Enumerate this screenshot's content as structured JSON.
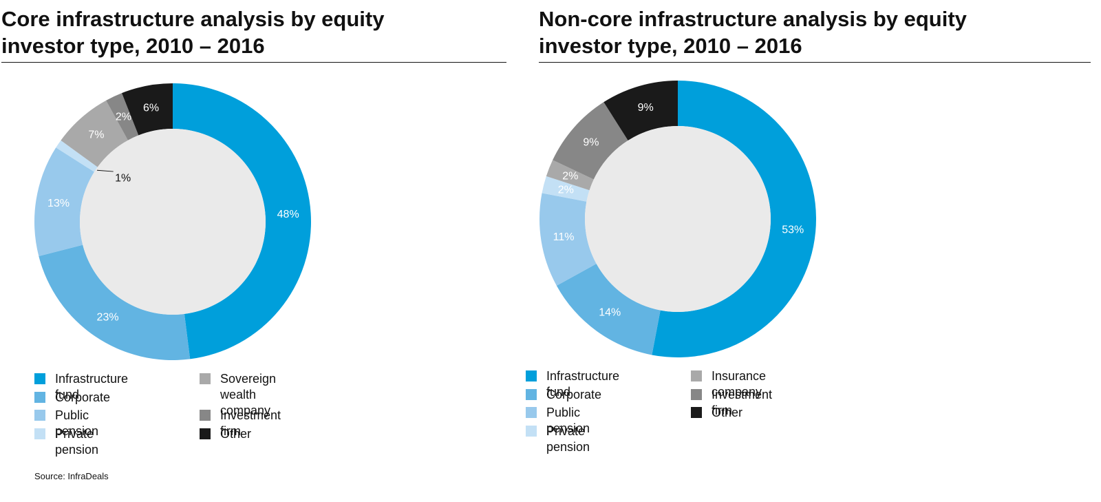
{
  "chart_data": [
    {
      "type": "pie",
      "subtype": "donut",
      "title": "Core infrastructure analysis by equity investor type, 2010 – 2016",
      "categories": [
        "Infrastructure fund",
        "Corporate",
        "Public pension",
        "Private pension",
        "Sovereign wealth company",
        "Investment firm",
        "Other"
      ],
      "values": [
        48,
        23,
        13,
        1,
        7,
        2,
        6
      ],
      "value_labels": [
        "48%",
        "23%",
        "13%",
        "1%",
        "7%",
        "2%",
        "6%"
      ],
      "colors": [
        "#009FDB",
        "#62B4E2",
        "#98C9EC",
        "#C3E0F5",
        "#A9A9A9",
        "#878787",
        "#1A1A1A"
      ],
      "label_colors": [
        "#FFFFFF",
        "#FFFFFF",
        "#FFFFFF",
        "#111111",
        "#FFFFFF",
        "#FFFFFF",
        "#FFFFFF"
      ],
      "legend_position": "bottom",
      "legend_columns": [
        [
          "Infrastructure fund",
          "Corporate",
          "Public pension",
          "Private pension"
        ],
        [
          "Sovereign wealth company",
          "Investment firm",
          "Other"
        ]
      ]
    },
    {
      "type": "pie",
      "subtype": "donut",
      "title": "Non-core infrastructure analysis by equity investor type, 2010 – 2016",
      "categories": [
        "Infrastructure fund",
        "Corporate",
        "Public pension",
        "Private pension",
        "Insurance company",
        "Investment firm",
        "Other"
      ],
      "values": [
        53,
        14,
        11,
        2,
        2,
        9,
        9
      ],
      "value_labels": [
        "53%",
        "14%",
        "11%",
        "2%",
        "2%",
        "9%",
        "9%"
      ],
      "colors": [
        "#009FDB",
        "#62B4E2",
        "#98C9EC",
        "#C3E0F5",
        "#A9A9A9",
        "#878787",
        "#1A1A1A"
      ],
      "label_colors": [
        "#FFFFFF",
        "#FFFFFF",
        "#FFFFFF",
        "#FFFFFF",
        "#FFFFFF",
        "#FFFFFF",
        "#FFFFFF"
      ],
      "legend_position": "bottom",
      "legend_columns": [
        [
          "Infrastructure fund",
          "Corporate",
          "Public pension",
          "Private pension"
        ],
        [
          "Insurance company",
          "Investment firm",
          "Other"
        ]
      ]
    }
  ],
  "left_panel": {
    "title_line1": "Core infrastructure analysis by equity",
    "title_line2": "investor type, 2010 – 2016",
    "legend_sovereign_line1": "Sovereign wealth",
    "legend_sovereign_line2": "company"
  },
  "right_panel": {
    "title_line1": "Non-core infrastructure analysis by equity",
    "title_line2": "investor type, 2010 – 2016"
  },
  "source": "Source: InfraDeals",
  "hole_color": "#EAEAEA"
}
